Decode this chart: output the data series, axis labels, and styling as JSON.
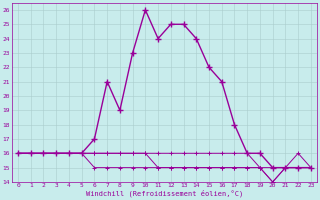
{
  "xlabel": "Windchill (Refroidissement éolien,°C)",
  "background_color": "#c8ecec",
  "line_color": "#990099",
  "xlim": [
    -0.5,
    23.5
  ],
  "ylim": [
    14,
    26.5
  ],
  "yticks": [
    14,
    15,
    16,
    17,
    18,
    19,
    20,
    21,
    22,
    23,
    24,
    25,
    26
  ],
  "xticks": [
    0,
    1,
    2,
    3,
    4,
    5,
    6,
    7,
    8,
    9,
    10,
    11,
    12,
    13,
    14,
    15,
    16,
    17,
    18,
    19,
    20,
    21,
    22,
    23
  ],
  "hours": [
    0,
    1,
    2,
    3,
    4,
    5,
    6,
    7,
    8,
    9,
    10,
    11,
    12,
    13,
    14,
    15,
    16,
    17,
    18,
    19,
    20,
    21,
    22,
    23
  ],
  "temp": [
    16,
    16,
    16,
    16,
    16,
    16,
    17,
    21,
    19,
    23,
    26,
    24,
    25,
    25,
    24,
    22,
    21,
    18,
    16,
    16,
    15,
    15,
    15,
    15
  ],
  "windchill1": [
    16,
    16,
    16,
    16,
    16,
    16,
    16,
    16,
    16,
    16,
    16,
    16,
    16,
    16,
    16,
    16,
    16,
    16,
    16,
    15,
    15,
    15,
    15,
    15
  ],
  "windchill2": [
    16,
    16,
    16,
    16,
    16,
    16,
    16,
    16,
    16,
    16,
    16,
    15,
    15,
    15,
    15,
    15,
    15,
    15,
    15,
    15,
    14,
    15,
    15,
    15
  ],
  "windchill3": [
    16,
    16,
    16,
    16,
    16,
    16,
    15,
    15,
    15,
    15,
    15,
    15,
    15,
    15,
    15,
    15,
    15,
    15,
    15,
    15,
    14,
    15,
    16,
    15
  ]
}
